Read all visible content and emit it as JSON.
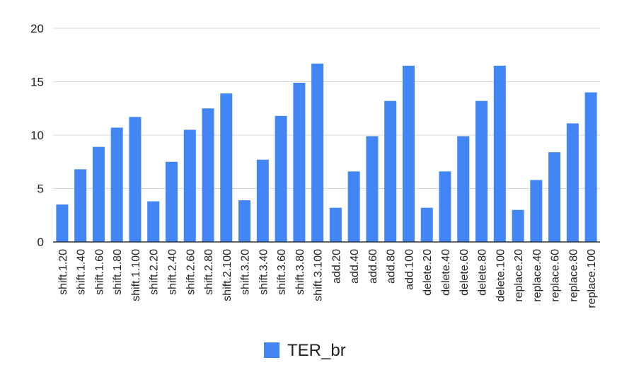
{
  "chart_data": {
    "type": "bar",
    "categories": [
      "shift.1.20",
      "shift.1.40",
      "shift.1.60",
      "shift.1.80",
      "shift.1.100",
      "shift.2.20",
      "shift.2.40",
      "shift.2.60",
      "shift.2.80",
      "shift.2.100",
      "shift.3.20",
      "shift.3.40",
      "shift.3.60",
      "shift.3.80",
      "shift.3.100",
      "add.20",
      "add.40",
      "add.60",
      "add.80",
      "add.100",
      "delete.20",
      "delete.40",
      "delete.60",
      "delete.80",
      "delete.100",
      "replace.20",
      "replace.40",
      "replace.60",
      "replace.80",
      "replace.100"
    ],
    "series": [
      {
        "name": "TER_br",
        "color": "#4285f4",
        "values": [
          3.5,
          6.8,
          8.9,
          10.7,
          11.7,
          3.8,
          7.5,
          10.5,
          12.5,
          13.9,
          3.9,
          7.7,
          11.8,
          14.9,
          16.7,
          3.2,
          6.6,
          9.9,
          13.2,
          16.5,
          3.2,
          6.6,
          9.9,
          13.2,
          16.5,
          3.0,
          5.8,
          8.4,
          11.1,
          14.0
        ]
      }
    ],
    "yticks": [
      "0",
      "5",
      "10",
      "15",
      "20"
    ],
    "ylim": [
      0,
      20
    ],
    "grid": true,
    "legend_position": "bottom"
  }
}
